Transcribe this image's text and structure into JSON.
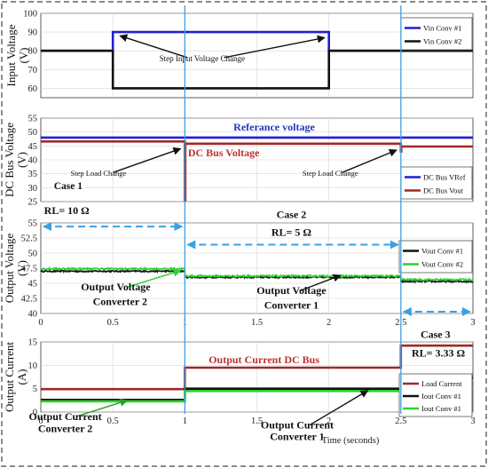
{
  "colors": {
    "blue": "#1f1fd6",
    "black": "#111111",
    "dark_red": "#a0282a",
    "green": "#2fd12f",
    "guide_blue": "#3aa0e6",
    "label_blue": "#2536b8",
    "label_red": "#b8342f",
    "frame": "#444444"
  },
  "chart_data": [
    {
      "type": "line",
      "id": "input",
      "ylabel": [
        "Input Voltage",
        "(V)"
      ],
      "xlim": [
        0,
        3
      ],
      "ylim": [
        55,
        100
      ],
      "yticks": [
        60,
        70,
        80,
        90,
        100
      ],
      "xtick_labels": [],
      "grid": true,
      "legend": "top-right",
      "series": [
        {
          "name": "Vin Conv #1",
          "color": "#1f1fd6",
          "x": [
            0,
            0.5,
            0.5,
            2,
            2,
            3
          ],
          "y": [
            80,
            80,
            90,
            90,
            80,
            80
          ]
        },
        {
          "name": "Vin Conv #2",
          "color": "#111111",
          "x": [
            0,
            0.5,
            0.5,
            2,
            2,
            3
          ],
          "y": [
            80,
            80,
            60,
            60,
            80,
            80
          ]
        }
      ],
      "annotations": [
        {
          "text": "Step Input Voltage Change",
          "x": 1.12,
          "y": 74.5,
          "arrows": [
            [
              0.55,
              88
            ],
            [
              1.97,
              87
            ]
          ],
          "size": 9,
          "color": "#111111"
        }
      ]
    },
    {
      "type": "line",
      "id": "dcbus",
      "ylabel": [
        "DC Bus Voltage",
        "(V)"
      ],
      "xlim": [
        0,
        3
      ],
      "ylim": [
        25,
        55
      ],
      "yticks": [
        25,
        30,
        35,
        40,
        45,
        50,
        55
      ],
      "xtick_labels": [],
      "grid": true,
      "legend": "bottom-right",
      "series": [
        {
          "name": "DC Bus VRef",
          "color": "#1f1fd6",
          "x": [
            0,
            3
          ],
          "y": [
            48,
            48
          ]
        },
        {
          "name": "DC Bus Vout",
          "color": "#a0282a",
          "x": [
            0,
            1,
            1,
            1.003,
            1.003,
            2.5,
            2.5,
            2.503,
            2.503,
            3
          ],
          "y": [
            46.6,
            46.6,
            25.5,
            25.5,
            45.8,
            45.8,
            43,
            43,
            44.8,
            44.8
          ]
        }
      ],
      "annotations": [
        {
          "text": "Referance voltage",
          "x": 1.62,
          "y": 50.6,
          "size": 12,
          "bold": true,
          "color": "#2536b8"
        },
        {
          "text": "DC Bus Voltage",
          "x": 1.27,
          "y": 41.2,
          "size": 12,
          "bold": true,
          "color": "#b8342f"
        },
        {
          "text": "Step Load Change",
          "x": 0.4,
          "y": 34.2,
          "arrows": [
            [
              0.97,
              44
            ]
          ],
          "size": 8.5,
          "color": "#111111"
        },
        {
          "text": "Step Load Change",
          "x": 2.01,
          "y": 34.2,
          "arrows": [
            [
              2.47,
              43.5
            ]
          ],
          "size": 8.5,
          "color": "#111111"
        },
        {
          "text": "Case 1",
          "x": 0.19,
          "y": 29.5,
          "size": 11.5,
          "bold": true,
          "color": "#111111"
        }
      ]
    },
    {
      "type": "line",
      "id": "output_voltage",
      "ylabel": [
        "Output Voltage",
        "(V)"
      ],
      "xlim": [
        0,
        3
      ],
      "ylim": [
        40,
        55
      ],
      "yticks": [
        40,
        42.5,
        45,
        47.5,
        50,
        52.5,
        55
      ],
      "ytick_labels": [
        "40",
        "42.5",
        "45",
        "47.5",
        "50",
        "52.5",
        "55"
      ],
      "xtick_labels": [
        "0",
        "0.5",
        "1",
        "1.5",
        "2",
        "2.5",
        "3"
      ],
      "grid": true,
      "legend": "top-right",
      "series": [
        {
          "name": "Vout Conv #1",
          "color": "#111111",
          "noise": 0.25,
          "x": [
            0,
            1,
            1,
            2.5,
            2.5,
            3
          ],
          "y": [
            47.0,
            47.0,
            46.0,
            46.0,
            45.3,
            45.3
          ]
        },
        {
          "name": "Vout Conv #2",
          "color": "#2fd12f",
          "noise": 0.3,
          "x": [
            0,
            1,
            1,
            2.5,
            2.5,
            3
          ],
          "y": [
            47.4,
            47.4,
            46.2,
            46.2,
            45.6,
            45.6
          ]
        }
      ],
      "annotations": [
        {
          "text": "RL= 10 Ω",
          "x": 0.18,
          "y": 56.5,
          "size": 12,
          "bold": true,
          "color": "#111111"
        },
        {
          "text": "Case 2",
          "x": 1.74,
          "y": 55.8,
          "size": 12,
          "bold": true,
          "color": "#111111"
        },
        {
          "text": "RL= 5 Ω",
          "x": 1.74,
          "y": 52.9,
          "size": 12,
          "bold": true,
          "color": "#111111"
        },
        {
          "text": "Output Voltage",
          "x": 0.52,
          "y": 43.8,
          "size": 12,
          "bold": true,
          "color": "#111111",
          "arrows": [
            [
              0.97,
              47.1
            ]
          ],
          "arrow_color": "#2fd12f"
        },
        {
          "text": "Converter 2",
          "x": 0.55,
          "y": 41.4,
          "size": 12,
          "bold": true,
          "color": "#111111"
        },
        {
          "text": "Output Voltage",
          "x": 1.74,
          "y": 43.2,
          "size": 12,
          "bold": true,
          "color": "#111111",
          "arrows": [
            [
              2.08,
              46.3
            ]
          ],
          "arrow_color": "#111111"
        },
        {
          "text": "Converter 1",
          "x": 1.74,
          "y": 40.8,
          "size": 12,
          "bold": true,
          "color": "#111111"
        }
      ],
      "dashed_arrows": [
        {
          "x1": 0.0,
          "x2": 1.0,
          "y": 54.4
        },
        {
          "x1": 1.0,
          "x2": 2.5,
          "y": 51.4
        },
        {
          "x1": 2.5,
          "x2": 3.0,
          "y": 40.3
        }
      ]
    },
    {
      "type": "line",
      "id": "output_current",
      "ylabel": [
        "Output Current",
        "(A)"
      ],
      "xlim": [
        0,
        3
      ],
      "ylim": [
        0,
        15
      ],
      "yticks": [
        0,
        5,
        10,
        15
      ],
      "xtick_labels": [
        "0",
        "0.5",
        "1",
        "1.5",
        "2",
        "2.5",
        "3"
      ],
      "xlabel": "Time (seconds)",
      "grid": true,
      "legend": "bottom-right",
      "series": [
        {
          "name": "Load Current",
          "color": "#a0282a",
          "x": [
            0,
            1,
            1,
            2.5,
            2.5,
            3
          ],
          "y": [
            4.9,
            4.9,
            9.5,
            9.5,
            14.2,
            14.2
          ]
        },
        {
          "name": "Iout Conv #1",
          "color": "#111111",
          "x": [
            0,
            1,
            1,
            2.5,
            2.5,
            3
          ],
          "y": [
            2.6,
            2.6,
            5.0,
            5.0,
            7.3,
            7.3
          ]
        },
        {
          "name": "Iout Conv #1",
          "color": "#2fd12f",
          "x": [
            0,
            1,
            1,
            2.5,
            2.5,
            3
          ],
          "y": [
            2.3,
            2.3,
            4.5,
            4.5,
            6.8,
            6.8
          ]
        }
      ],
      "annotations": [
        {
          "text": "Case 3",
          "x": 2.74,
          "y": 15.9,
          "size": 12,
          "bold": true,
          "color": "#111111"
        },
        {
          "text": "RL= 3.33 Ω",
          "x": 2.76,
          "y": 11.9,
          "size": 12,
          "bold": true,
          "color": "#111111"
        },
        {
          "text": "Output Current DC Bus",
          "x": 1.55,
          "y": 10.4,
          "size": 12,
          "bold": true,
          "color": "#b8342f"
        },
        {
          "text": "Output Current",
          "x": 0.17,
          "y": -1.7,
          "size": 12,
          "bold": true,
          "color": "#111111",
          "arrows": [
            [
              0.6,
              2.5
            ]
          ],
          "arrow_color": "#2a9d2a"
        },
        {
          "text": "Converter 2",
          "x": 0.17,
          "y": -4.3,
          "size": 12,
          "bold": true,
          "color": "#111111"
        },
        {
          "text": "Output Current",
          "x": 1.78,
          "y": -3.5,
          "size": 12,
          "bold": true,
          "color": "#111111",
          "arrows": [
            [
              2.27,
              4.6
            ]
          ],
          "arrow_color": "#111111"
        },
        {
          "text": "Converter 1",
          "x": 1.78,
          "y": -6.0,
          "size": 12,
          "bold": true,
          "color": "#111111"
        }
      ]
    }
  ]
}
